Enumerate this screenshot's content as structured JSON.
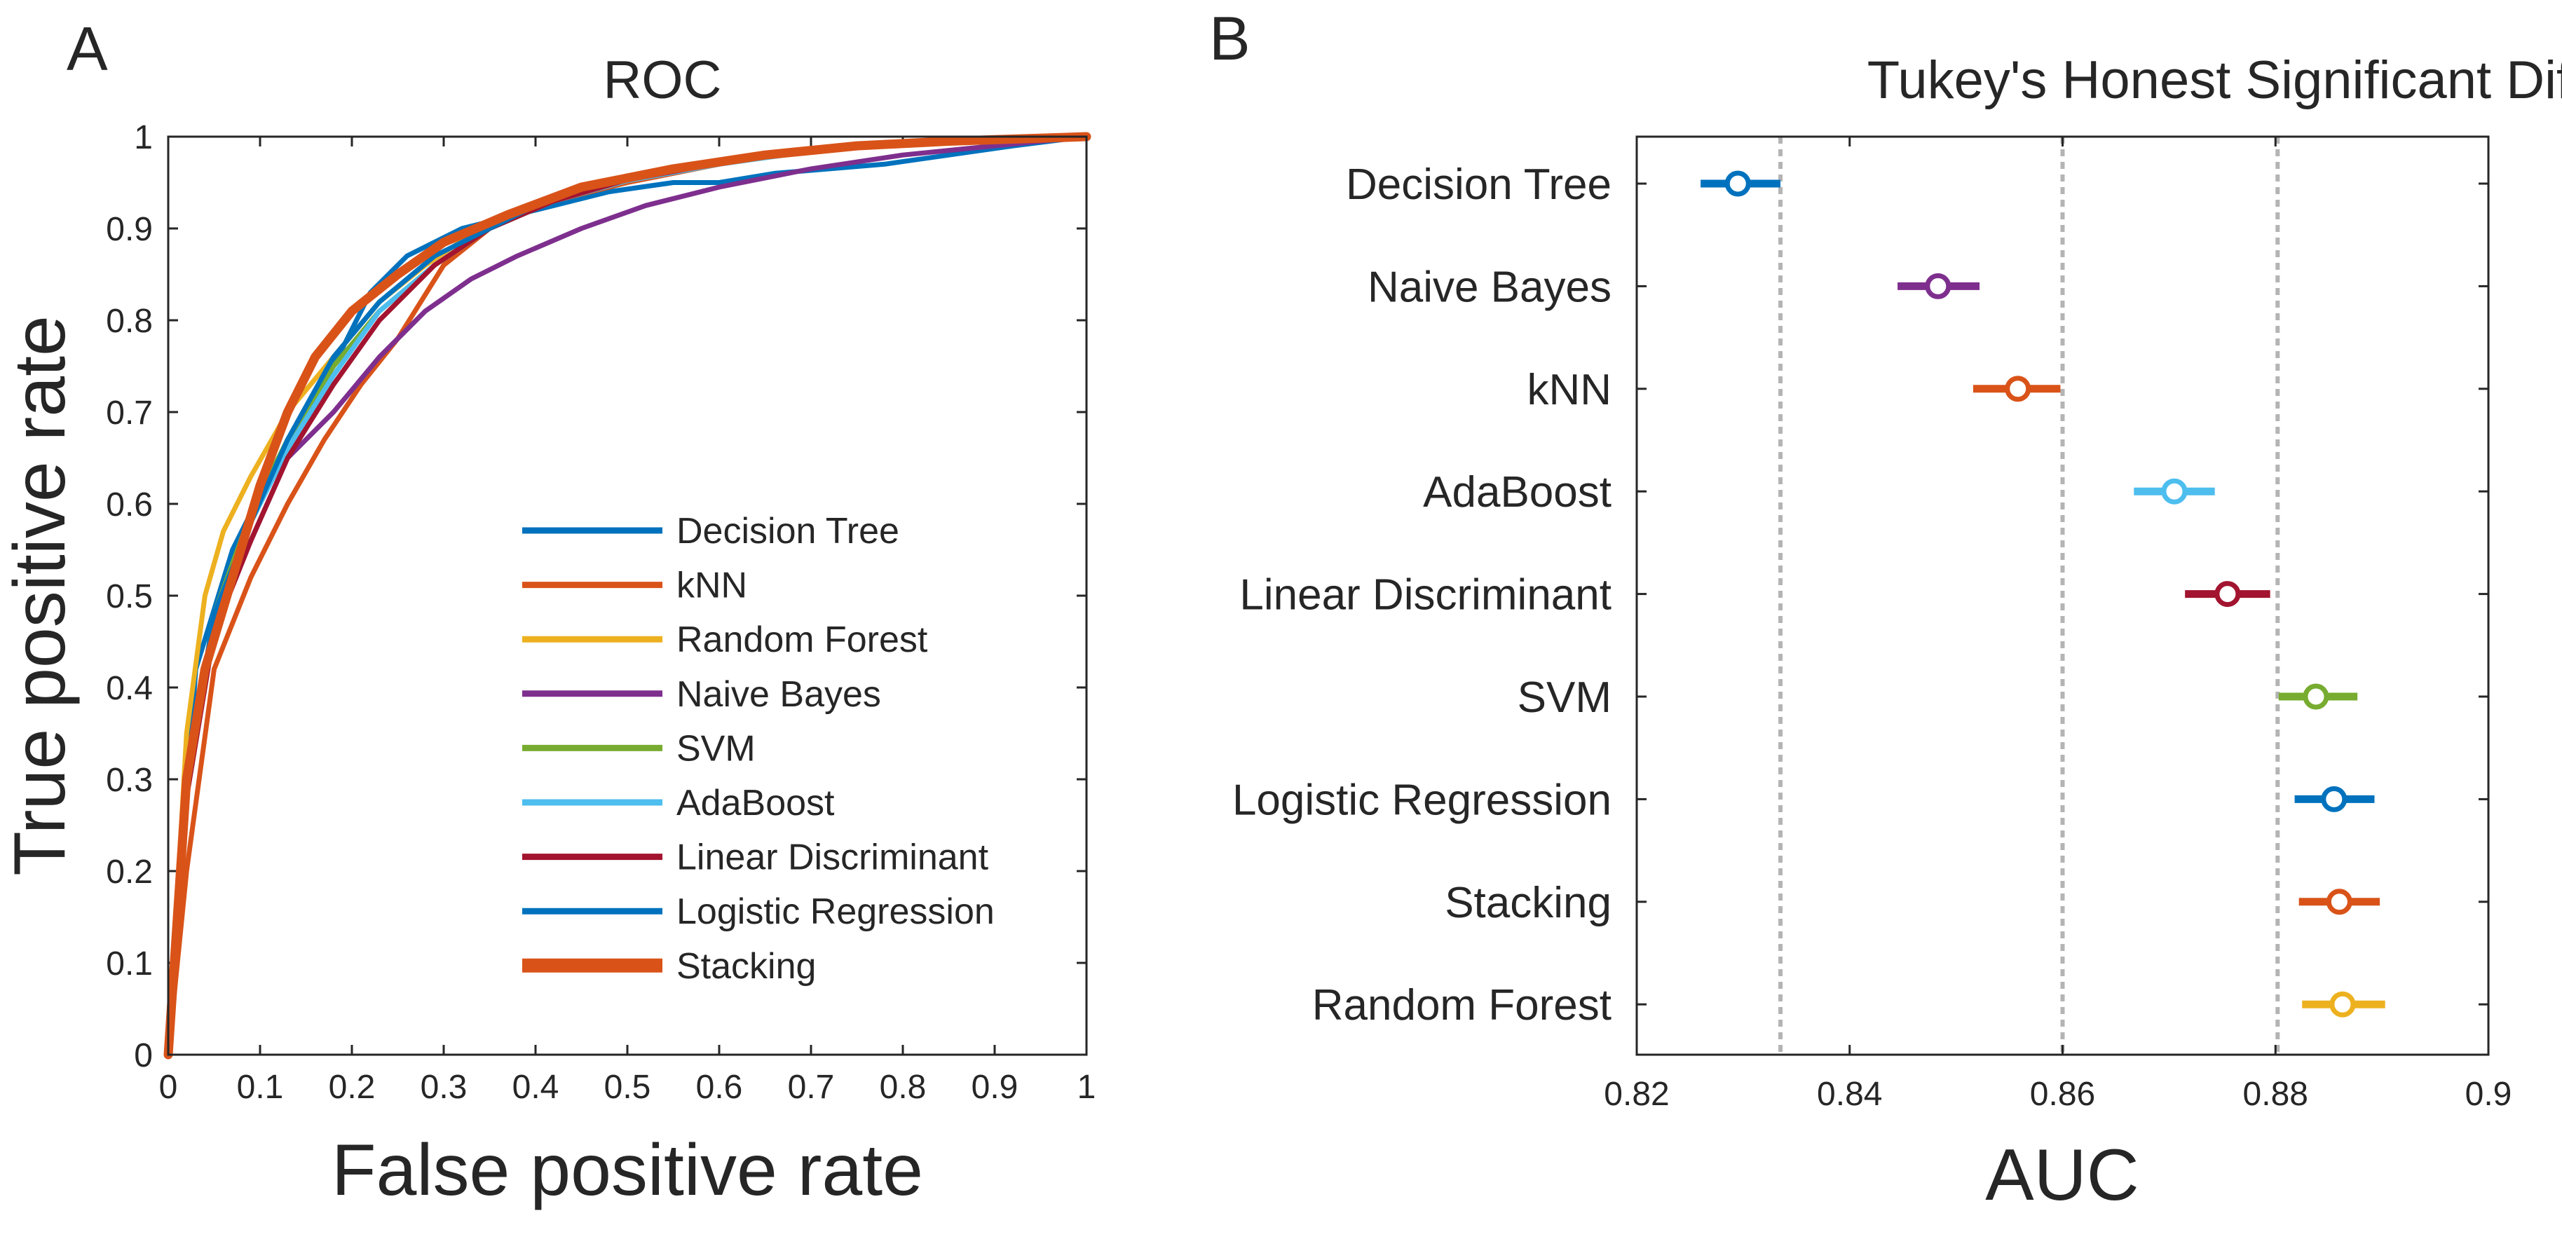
{
  "panels": [
    {
      "letter": "A"
    },
    {
      "letter": "B"
    }
  ],
  "chart_data": [
    {
      "type": "line",
      "panel": "A",
      "title": "ROC",
      "xlabel": "False positive rate",
      "ylabel": "True positive rate",
      "xlim": [
        0,
        1
      ],
      "ylim": [
        0,
        1
      ],
      "xticks": [
        "0",
        "0.1",
        "0.2",
        "0.3",
        "0.4",
        "0.5",
        "0.6",
        "0.7",
        "0.8",
        "0.9",
        "1"
      ],
      "yticks": [
        "0",
        "0.1",
        "0.2",
        "0.3",
        "0.4",
        "0.5",
        "0.6",
        "0.7",
        "0.8",
        "0.9",
        "1"
      ],
      "legend_position": "lower-right",
      "series": [
        {
          "name": "Decision Tree",
          "color": "#0072BD",
          "emphasis": false,
          "points": [
            [
              0,
              0
            ],
            [
              0.03,
              0.42
            ],
            [
              0.07,
              0.55
            ],
            [
              0.12,
              0.65
            ],
            [
              0.18,
              0.75
            ],
            [
              0.22,
              0.83
            ],
            [
              0.26,
              0.87
            ],
            [
              0.32,
              0.9
            ],
            [
              0.4,
              0.92
            ],
            [
              0.48,
              0.94
            ],
            [
              0.55,
              0.95
            ],
            [
              0.6,
              0.95
            ],
            [
              0.66,
              0.96
            ],
            [
              0.72,
              0.965
            ],
            [
              0.78,
              0.97
            ],
            [
              0.85,
              0.98
            ],
            [
              0.92,
              0.99
            ],
            [
              1,
              1
            ]
          ]
        },
        {
          "name": "kNN",
          "color": "#D95319",
          "emphasis": false,
          "points": [
            [
              0,
              0
            ],
            [
              0.02,
              0.2
            ],
            [
              0.05,
              0.42
            ],
            [
              0.09,
              0.52
            ],
            [
              0.13,
              0.6
            ],
            [
              0.17,
              0.67
            ],
            [
              0.21,
              0.73
            ],
            [
              0.25,
              0.78
            ],
            [
              0.3,
              0.86
            ],
            [
              0.35,
              0.9
            ],
            [
              0.42,
              0.93
            ],
            [
              0.5,
              0.95
            ],
            [
              0.6,
              0.97
            ],
            [
              0.7,
              0.985
            ],
            [
              0.8,
              0.993
            ],
            [
              0.9,
              0.998
            ],
            [
              1,
              1
            ]
          ]
        },
        {
          "name": "Random Forest",
          "color": "#EDB120",
          "emphasis": false,
          "points": [
            [
              0,
              0
            ],
            [
              0.02,
              0.35
            ],
            [
              0.04,
              0.5
            ],
            [
              0.06,
              0.57
            ],
            [
              0.09,
              0.63
            ],
            [
              0.13,
              0.7
            ],
            [
              0.18,
              0.76
            ],
            [
              0.23,
              0.82
            ],
            [
              0.28,
              0.86
            ],
            [
              0.34,
              0.9
            ],
            [
              0.42,
              0.93
            ],
            [
              0.5,
              0.955
            ],
            [
              0.6,
              0.972
            ],
            [
              0.7,
              0.985
            ],
            [
              0.8,
              0.994
            ],
            [
              0.9,
              0.998
            ],
            [
              1,
              1
            ]
          ]
        },
        {
          "name": "Naive Bayes",
          "color": "#7E2F8E",
          "emphasis": false,
          "points": [
            [
              0,
              0
            ],
            [
              0.02,
              0.3
            ],
            [
              0.05,
              0.47
            ],
            [
              0.09,
              0.56
            ],
            [
              0.13,
              0.65
            ],
            [
              0.18,
              0.7
            ],
            [
              0.23,
              0.76
            ],
            [
              0.28,
              0.81
            ],
            [
              0.33,
              0.845
            ],
            [
              0.38,
              0.87
            ],
            [
              0.45,
              0.9
            ],
            [
              0.52,
              0.925
            ],
            [
              0.6,
              0.945
            ],
            [
              0.7,
              0.965
            ],
            [
              0.8,
              0.98
            ],
            [
              0.9,
              0.99
            ],
            [
              1,
              1
            ]
          ]
        },
        {
          "name": "SVM",
          "color": "#77AC30",
          "emphasis": false,
          "points": [
            [
              0,
              0
            ],
            [
              0.02,
              0.3
            ],
            [
              0.05,
              0.48
            ],
            [
              0.09,
              0.59
            ],
            [
              0.13,
              0.67
            ],
            [
              0.18,
              0.75
            ],
            [
              0.23,
              0.81
            ],
            [
              0.29,
              0.86
            ],
            [
              0.35,
              0.9
            ],
            [
              0.42,
              0.93
            ],
            [
              0.5,
              0.955
            ],
            [
              0.6,
              0.972
            ],
            [
              0.7,
              0.985
            ],
            [
              0.8,
              0.994
            ],
            [
              0.9,
              0.998
            ],
            [
              1,
              1
            ]
          ]
        },
        {
          "name": "AdaBoost",
          "color": "#4DBEEE",
          "emphasis": false,
          "points": [
            [
              0,
              0
            ],
            [
              0.02,
              0.3
            ],
            [
              0.05,
              0.48
            ],
            [
              0.09,
              0.58
            ],
            [
              0.13,
              0.66
            ],
            [
              0.18,
              0.74
            ],
            [
              0.23,
              0.81
            ],
            [
              0.29,
              0.86
            ],
            [
              0.35,
              0.9
            ],
            [
              0.42,
              0.93
            ],
            [
              0.5,
              0.952
            ],
            [
              0.6,
              0.97
            ],
            [
              0.7,
              0.984
            ],
            [
              0.8,
              0.993
            ],
            [
              0.9,
              0.998
            ],
            [
              1,
              1
            ]
          ]
        },
        {
          "name": "Linear Discriminant",
          "color": "#A2142F",
          "emphasis": false,
          "points": [
            [
              0,
              0
            ],
            [
              0.02,
              0.28
            ],
            [
              0.05,
              0.46
            ],
            [
              0.09,
              0.56
            ],
            [
              0.13,
              0.65
            ],
            [
              0.18,
              0.73
            ],
            [
              0.23,
              0.8
            ],
            [
              0.29,
              0.86
            ],
            [
              0.35,
              0.9
            ],
            [
              0.42,
              0.93
            ],
            [
              0.5,
              0.953
            ],
            [
              0.6,
              0.971
            ],
            [
              0.7,
              0.985
            ],
            [
              0.8,
              0.994
            ],
            [
              0.9,
              0.998
            ],
            [
              1,
              1
            ]
          ]
        },
        {
          "name": "Logistic Regression",
          "color": "#0072BD",
          "emphasis": false,
          "points": [
            [
              0,
              0
            ],
            [
              0.02,
              0.3
            ],
            [
              0.05,
              0.48
            ],
            [
              0.09,
              0.58
            ],
            [
              0.13,
              0.67
            ],
            [
              0.18,
              0.76
            ],
            [
              0.23,
              0.82
            ],
            [
              0.29,
              0.87
            ],
            [
              0.35,
              0.9
            ],
            [
              0.42,
              0.935
            ],
            [
              0.5,
              0.956
            ],
            [
              0.6,
              0.973
            ],
            [
              0.7,
              0.986
            ],
            [
              0.8,
              0.994
            ],
            [
              0.9,
              0.998
            ],
            [
              1,
              1
            ]
          ]
        },
        {
          "name": "Stacking",
          "color": "#D95319",
          "emphasis": true,
          "points": [
            [
              0,
              0
            ],
            [
              0.02,
              0.3
            ],
            [
              0.04,
              0.42
            ],
            [
              0.07,
              0.52
            ],
            [
              0.1,
              0.62
            ],
            [
              0.13,
              0.7
            ],
            [
              0.16,
              0.76
            ],
            [
              0.2,
              0.81
            ],
            [
              0.25,
              0.85
            ],
            [
              0.3,
              0.885
            ],
            [
              0.37,
              0.915
            ],
            [
              0.45,
              0.945
            ],
            [
              0.55,
              0.965
            ],
            [
              0.65,
              0.98
            ],
            [
              0.75,
              0.99
            ],
            [
              0.85,
              0.995
            ],
            [
              1,
              1
            ]
          ]
        }
      ]
    },
    {
      "type": "scatter",
      "subtype": "interval",
      "panel": "B",
      "title": "Tukey's Honest Significant Difference",
      "xlabel": "AUC",
      "ylabel": "",
      "xlim": [
        0.82,
        0.9
      ],
      "xticks": [
        "0.82",
        "0.84",
        "0.86",
        "0.88",
        "0.9"
      ],
      "reference_lines": [
        0.8335,
        0.86,
        0.8802
      ],
      "categories": [
        "Decision Tree",
        "Naive Bayes",
        "kNN",
        "AdaBoost",
        "Linear Discriminant",
        "SVM",
        "Logistic Regression",
        "Stacking",
        "Random Forest"
      ],
      "series": [
        {
          "name": "Decision Tree",
          "mean": 0.8295,
          "low": 0.826,
          "high": 0.8335,
          "color": "#0072BD"
        },
        {
          "name": "Naive Bayes",
          "mean": 0.8483,
          "low": 0.8445,
          "high": 0.8522,
          "color": "#7E2F8E"
        },
        {
          "name": "kNN",
          "mean": 0.8558,
          "low": 0.8516,
          "high": 0.8598,
          "color": "#D95319"
        },
        {
          "name": "AdaBoost",
          "mean": 0.8705,
          "low": 0.8667,
          "high": 0.8743,
          "color": "#4DBEEE"
        },
        {
          "name": "Linear Discriminant",
          "mean": 0.8755,
          "low": 0.8715,
          "high": 0.8795,
          "color": "#A2142F"
        },
        {
          "name": "SVM",
          "mean": 0.8838,
          "low": 0.8803,
          "high": 0.8877,
          "color": "#77AC30"
        },
        {
          "name": "Logistic Regression",
          "mean": 0.8855,
          "low": 0.8818,
          "high": 0.8893,
          "color": "#0072BD"
        },
        {
          "name": "Stacking",
          "mean": 0.886,
          "low": 0.8822,
          "high": 0.8898,
          "color": "#D95319"
        },
        {
          "name": "Random Forest",
          "mean": 0.8863,
          "low": 0.8825,
          "high": 0.8903,
          "color": "#EDB120"
        }
      ]
    }
  ]
}
